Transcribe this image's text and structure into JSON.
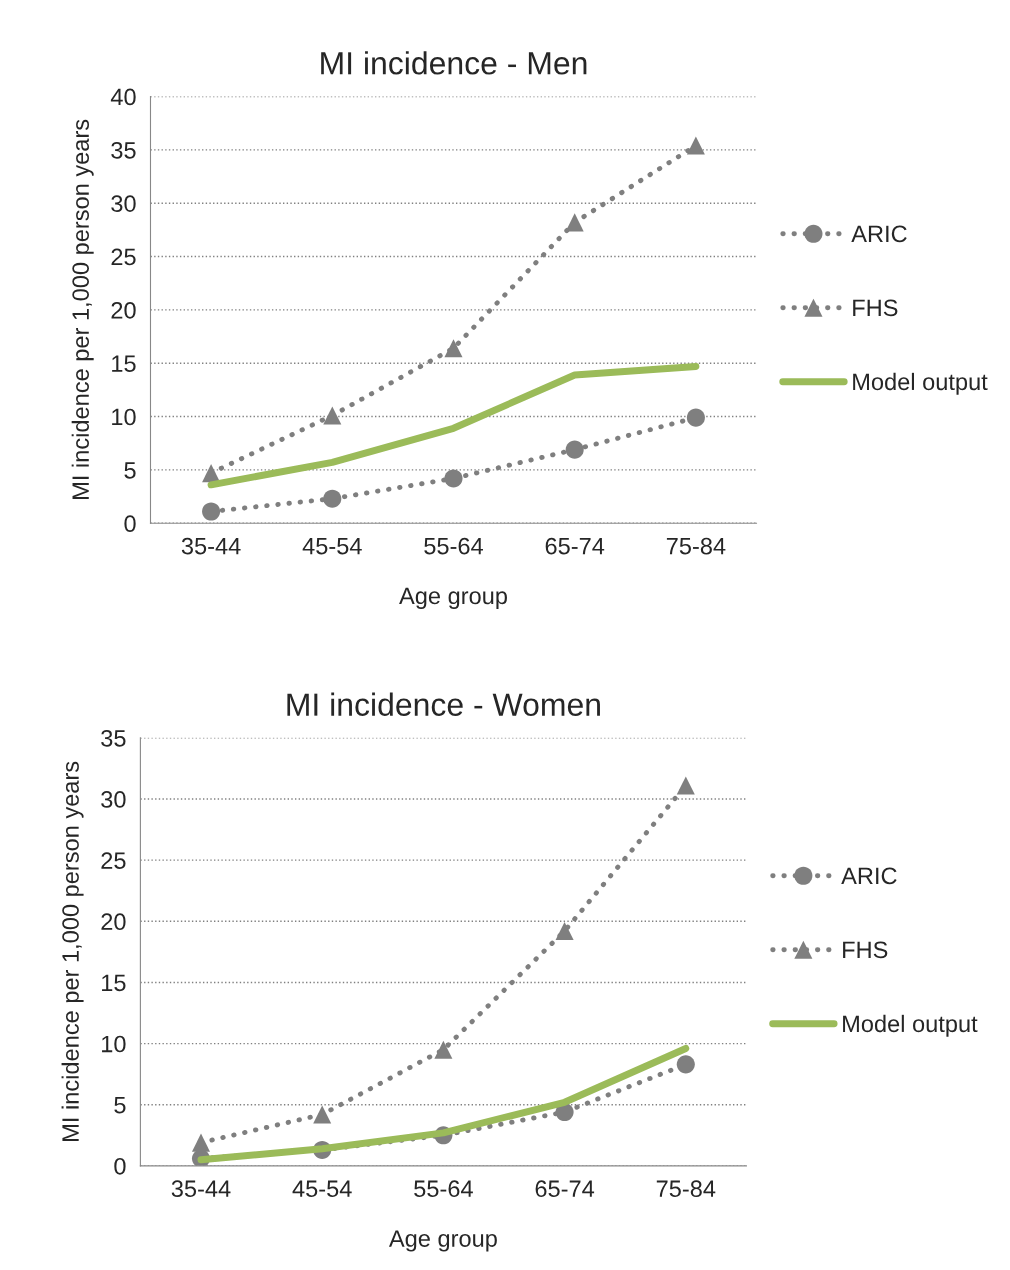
{
  "chart_data": [
    {
      "type": "line",
      "title": "MI incidence - Men",
      "xlabel": "Age group",
      "ylabel": "MI incidence per 1,000 person years",
      "categories": [
        "35-44",
        "45-54",
        "55-64",
        "65-74",
        "75-84"
      ],
      "ylim": [
        0,
        40
      ],
      "yticks": [
        0,
        5,
        10,
        15,
        20,
        25,
        30,
        35,
        40
      ],
      "grid": "y",
      "legend": "right",
      "series": [
        {
          "name": "ARIC",
          "color": "#7f7f7f",
          "marker": "circle",
          "line_style": "dotted",
          "values": [
            1.1,
            2.3,
            4.2,
            6.9,
            9.9
          ]
        },
        {
          "name": "FHS",
          "color": "#7f7f7f",
          "marker": "triangle",
          "line_style": "dotted",
          "values": [
            4.7,
            10.1,
            16.4,
            28.2,
            35.4
          ]
        },
        {
          "name": "Model output",
          "color": "#9bbb59",
          "marker": "none",
          "line_style": "solid",
          "values": [
            3.6,
            5.7,
            8.9,
            13.9,
            14.7
          ]
        }
      ]
    },
    {
      "type": "line",
      "title": "MI incidence - Women",
      "xlabel": "Age group",
      "ylabel": "MI incidence per 1,000 person years",
      "categories": [
        "35-44",
        "45-54",
        "55-64",
        "65-74",
        "75-84"
      ],
      "ylim": [
        0,
        35
      ],
      "yticks": [
        0,
        5,
        10,
        15,
        20,
        25,
        30,
        35
      ],
      "grid": "y",
      "legend": "right",
      "series": [
        {
          "name": "ARIC",
          "color": "#7f7f7f",
          "marker": "circle",
          "line_style": "dotted",
          "values": [
            0.6,
            1.3,
            2.5,
            4.4,
            8.3
          ]
        },
        {
          "name": "FHS",
          "color": "#7f7f7f",
          "marker": "triangle",
          "line_style": "dotted",
          "values": [
            1.9,
            4.2,
            9.5,
            19.2,
            31.1
          ]
        },
        {
          "name": "Model output",
          "color": "#9bbb59",
          "marker": "none",
          "line_style": "solid",
          "values": [
            0.5,
            1.4,
            2.7,
            5.2,
            9.6
          ]
        }
      ]
    }
  ]
}
